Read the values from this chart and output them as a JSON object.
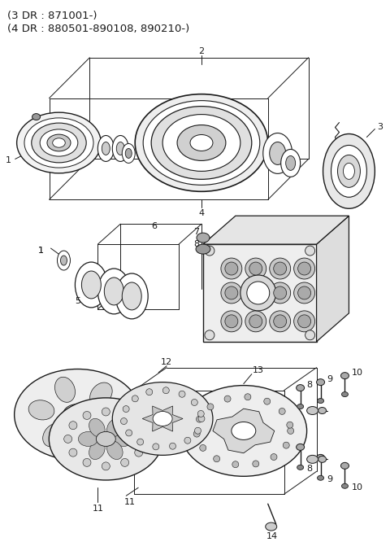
{
  "title_line1": "(3 DR : 871001-)",
  "title_line2": "(4 DR : 880501-890108, 890210-)",
  "background_color": "#ffffff",
  "line_color": "#1a1a1a",
  "text_color": "#1a1a1a",
  "title_fontsize": 9.5,
  "label_fontsize": 8,
  "fig_width": 4.8,
  "fig_height": 6.82,
  "dpi": 100
}
